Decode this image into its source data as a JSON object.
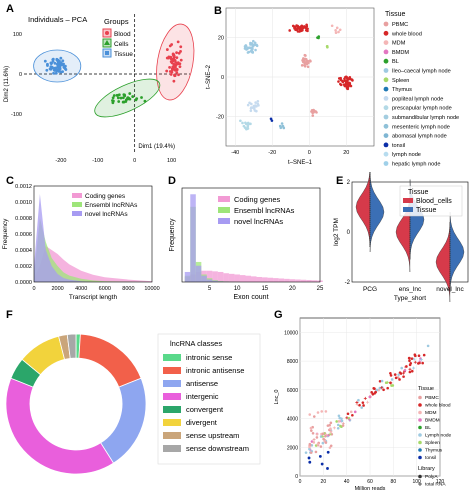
{
  "panels": {
    "A": "A",
    "B": "B",
    "C": "C",
    "D": "D",
    "E": "E",
    "F": "F",
    "G": "G"
  },
  "chart_data": [
    {
      "id": "A",
      "type": "scatter",
      "title": "Individuals – PCA",
      "xlabel": "Dim1 (19.4%)",
      "ylabel": "Dim2 (11.6%)",
      "xlim": [
        -300,
        150
      ],
      "ylim": [
        -200,
        150
      ],
      "xticks": [
        "-200",
        "-100",
        "0",
        "100"
      ],
      "yticks": [
        "100",
        "0",
        "-100"
      ],
      "legend_title": "Groups",
      "series": [
        {
          "name": "Blood",
          "color": "#e8414e",
          "center": [
            110,
            30
          ],
          "spread": [
            30,
            60
          ],
          "n": 60
        },
        {
          "name": "Cells",
          "color": "#2ca02c",
          "center": [
            -20,
            -60
          ],
          "spread": [
            60,
            20
          ],
          "n": 30
        },
        {
          "name": "Tissue",
          "color": "#4a90d9",
          "center": [
            -210,
            20
          ],
          "spread": [
            40,
            25
          ],
          "n": 70
        }
      ]
    },
    {
      "id": "B",
      "type": "scatter",
      "xlabel": "t–SNE–1",
      "ylabel": "t–SNE–2",
      "xlim": [
        -45,
        35
      ],
      "ylim": [
        -35,
        35
      ],
      "xticks": [
        "-40",
        "-20",
        "0",
        "20"
      ],
      "yticks": [
        "20",
        "0",
        "-20"
      ],
      "legend_title": "Tissue",
      "legend": [
        {
          "name": "PBMC",
          "color": "#e8a0a0"
        },
        {
          "name": "whole blood",
          "color": "#d62728"
        },
        {
          "name": "MDM",
          "color": "#f4b6b6"
        },
        {
          "name": "BMDM",
          "color": "#e377c2"
        },
        {
          "name": "BL",
          "color": "#2ca02c"
        },
        {
          "name": "Ileo–caecal lymph node",
          "color": "#9ecae1"
        },
        {
          "name": "Spleen",
          "color": "#a6d96a"
        },
        {
          "name": "Thymus",
          "color": "#1f78b4"
        },
        {
          "name": "popliteal lymph node",
          "color": "#c6dbef"
        },
        {
          "name": "prescapular lymph node",
          "color": "#b3d9e6"
        },
        {
          "name": "submandibular lymph node",
          "color": "#a3cde0"
        },
        {
          "name": "mesenteric lymph node",
          "color": "#8fc1d8"
        },
        {
          "name": "abomasal lymph node",
          "color": "#7fb6d3"
        },
        {
          "name": "tonsil",
          "color": "#0b2ea8"
        },
        {
          "name": "lymph node",
          "color": "#b7dcef"
        },
        {
          "name": "hepatic lymph node",
          "color": "#9fd0e9"
        }
      ]
    },
    {
      "id": "C",
      "type": "area",
      "xlabel": "Transcript length",
      "ylabel": "Frequency",
      "xlim": [
        0,
        10000
      ],
      "ylim": [
        0,
        0.0012
      ],
      "xticks": [
        "0",
        "2000",
        "4000",
        "6000",
        "8000",
        "10000"
      ],
      "yticks": [
        "0.0012",
        "0.0010",
        "0.0008",
        "0.0006",
        "0.0004",
        "0.0002",
        "0.0000"
      ],
      "series": [
        {
          "name": "Coding genes",
          "color": "#f29ad4",
          "x": [
            0,
            500,
            1000,
            1500,
            2000,
            2500,
            3000,
            4000,
            5000,
            6000,
            8000,
            10000
          ],
          "values": [
            5e-05,
            0.0002,
            0.00045,
            0.0004,
            0.00035,
            0.00028,
            0.00022,
            0.00014,
            9e-05,
            6e-05,
            3e-05,
            1e-05
          ]
        },
        {
          "name": "Ensembl lncRNAs",
          "color": "#9ee57a",
          "x": [
            0,
            500,
            1000,
            1500,
            2000,
            2500,
            3000,
            4000,
            5000,
            6000,
            8000,
            10000
          ],
          "values": [
            0.0001,
            0.0008,
            0.0005,
            0.0003,
            0.0002,
            0.00012,
            8e-05,
            4e-05,
            2e-05,
            1e-05,
            5e-06,
            0
          ]
        },
        {
          "name": "novel lncRNAs",
          "color": "#a79bf2",
          "x": [
            0,
            500,
            1000,
            1500,
            2000,
            2500,
            3000,
            4000,
            5000,
            6000,
            8000,
            10000
          ],
          "values": [
            0.0002,
            0.0011,
            0.0004,
            0.0002,
            0.0001,
            5e-05,
            3e-05,
            1e-05,
            0,
            0,
            0,
            0
          ]
        }
      ]
    },
    {
      "id": "D",
      "type": "bar",
      "xlabel": "Exon count",
      "ylabel": "Frequency",
      "xlim": [
        0,
        25
      ],
      "xticks": [
        "5",
        "10",
        "15",
        "20",
        "25"
      ],
      "series": [
        {
          "name": "Coding genes",
          "color": "#f29ad4",
          "x": [
            1,
            2,
            3,
            4,
            5,
            6,
            7,
            8,
            9,
            10,
            11,
            12,
            13,
            14,
            15,
            16,
            17,
            18,
            19,
            20,
            21,
            22,
            23,
            24,
            25
          ],
          "values": [
            0.04,
            0.06,
            0.08,
            0.09,
            0.09,
            0.085,
            0.08,
            0.07,
            0.065,
            0.06,
            0.055,
            0.05,
            0.045,
            0.04,
            0.037,
            0.034,
            0.031,
            0.028,
            0.025,
            0.022,
            0.02,
            0.018,
            0.016,
            0.014,
            0.012
          ]
        },
        {
          "name": "Ensembl lncRNAs",
          "color": "#9ee57a",
          "x": [
            1,
            2,
            3,
            4,
            5,
            6,
            7,
            8,
            9,
            10
          ],
          "values": [
            0.05,
            0.6,
            0.16,
            0.06,
            0.03,
            0.015,
            0.008,
            0.005,
            0.003,
            0.002
          ]
        },
        {
          "name": "novel lncRNAs",
          "color": "#a79bf2",
          "x": [
            1,
            2,
            3,
            4,
            5,
            6,
            7,
            8,
            9,
            10
          ],
          "values": [
            0.08,
            0.7,
            0.13,
            0.05,
            0.02,
            0.01,
            0.005,
            0.003,
            0.002,
            0.001
          ]
        }
      ]
    },
    {
      "id": "E",
      "type": "violin",
      "xlabel": "Type_short",
      "ylabel": "log2 TPM",
      "ylim": [
        -2,
        2
      ],
      "categories": [
        "PCG",
        "ens_lnc",
        "novel_lnc"
      ],
      "yticks": [
        "2",
        "0",
        "-2"
      ],
      "legend_title": "Tissue",
      "series": [
        {
          "name": "Blood_cells",
          "color": "#d63a4a"
        },
        {
          "name": "Tissue",
          "color": "#3b6fb5"
        }
      ]
    },
    {
      "id": "F",
      "type": "pie",
      "legend_title": "lncRNA classes",
      "slices": [
        {
          "label": "intronic sense",
          "value": 1,
          "color": "#59d98a"
        },
        {
          "label": "intronic antisense",
          "value": 18,
          "color": "#f2604a"
        },
        {
          "label": "antisense",
          "value": 22,
          "color": "#8ea6f0"
        },
        {
          "label": "intergenic",
          "value": 40,
          "color": "#e95fdc"
        },
        {
          "label": "convergent",
          "value": 5,
          "color": "#2ba66a"
        },
        {
          "label": "divergent",
          "value": 10,
          "color": "#f2d33c"
        },
        {
          "label": "sense upstream",
          "value": 2,
          "color": "#caa57a"
        },
        {
          "label": "sense downstream",
          "value": 2,
          "color": "#a7a7a7"
        }
      ]
    },
    {
      "id": "G",
      "type": "scatter",
      "xlabel": "Million reads",
      "ylabel": "Lnc_0",
      "xlim": [
        0,
        120
      ],
      "ylim": [
        0,
        11000
      ],
      "xticks": [
        "0",
        "20",
        "40",
        "60",
        "80",
        "100",
        "120"
      ],
      "yticks": [
        "10000",
        "8000",
        "6000",
        "4000",
        "2000",
        "0"
      ],
      "legend_title": "Tissue",
      "legend": [
        {
          "name": "PBMC",
          "color": "#e8a0a0"
        },
        {
          "name": "whole blood",
          "color": "#d62728"
        },
        {
          "name": "MDM",
          "color": "#f4b6b6"
        },
        {
          "name": "BMDM",
          "color": "#e377c2"
        },
        {
          "name": "BL",
          "color": "#2ca02c"
        },
        {
          "name": "Lymph node",
          "color": "#9ecae1"
        },
        {
          "name": "Spleen",
          "color": "#a6d96a"
        },
        {
          "name": "Thymus",
          "color": "#1f78b4"
        },
        {
          "name": "tonsil",
          "color": "#0b2ea8"
        }
      ],
      "legend2_title": "Library",
      "legend2": [
        {
          "name": "PolyA",
          "marker": "circle"
        },
        {
          "name": "total RNA",
          "marker": "cross"
        }
      ]
    }
  ]
}
